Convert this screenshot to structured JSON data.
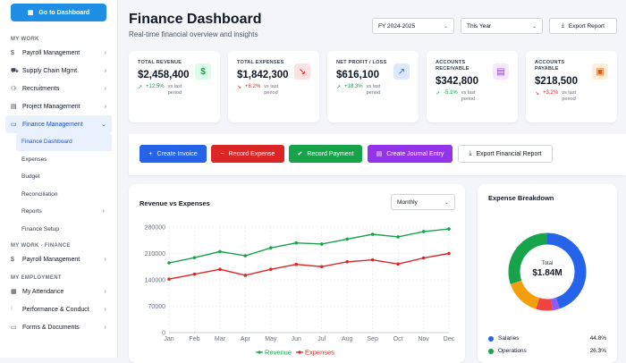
{
  "sidebar": {
    "go_btn": "Go to Dashboard",
    "sec_work": "MY WORK",
    "payroll": "Payroll Management",
    "supply": "Supply Chain Mgmt.",
    "recruit": "Recruitments",
    "project": "Project Management",
    "finance": "Finance Management",
    "sub": {
      "dash": "Finance Dashboard",
      "exp": "Expenses",
      "budget": "Budget",
      "recon": "Reconciliation",
      "reports": "Reports",
      "setup": "Finance Setup"
    },
    "sec_work_fin": "MY WORK - FINANCE",
    "payroll2": "Payroll Management",
    "sec_emp": "MY EMPLOYMENT",
    "attendance": "My Attendance",
    "perf": "Performance & Conduct",
    "forms": "Forms & Documents"
  },
  "header": {
    "title": "Finance Dashboard",
    "subtitle": "Real-time financial overview and insights",
    "fy": "FY 2024-2025",
    "period": "This Year",
    "export": "Export Report"
  },
  "cards": [
    {
      "label": "TOTAL REVENUE",
      "value": "$2,458,400",
      "change": "+12.5%",
      "vs": "vs last period",
      "color": "#16a34a",
      "icon": "$",
      "icon_bg": "#dcfce7"
    },
    {
      "label": "TOTAL EXPENSES",
      "value": "$1,842,300",
      "change": "+8.2%",
      "vs": "vs last period",
      "color": "#dc2626",
      "icon": "↘",
      "icon_bg": "#fee2e2"
    },
    {
      "label": "NET PROFIT / LOSS",
      "value": "$616,100",
      "change": "+18.3%",
      "vs": "vs last period",
      "color": "#16a34a",
      "icon": "↗",
      "icon_bg": "#dbeafe"
    },
    {
      "label": "ACCOUNTS RECEIVABLE",
      "value": "$342,800",
      "change": "-5.1%",
      "vs": "vs last period",
      "color": "#16a34a",
      "icon": "▤",
      "icon_bg": "#f3e8ff"
    },
    {
      "label": "ACCOUNTS PAYABLE",
      "value": "$218,500",
      "change": "+3.2%",
      "vs": "vs last period",
      "color": "#dc2626",
      "icon": "▣",
      "icon_bg": "#ffedd5"
    }
  ],
  "actions": {
    "invoice": "Create Invoice",
    "expense": "Record Expense",
    "payment": "Record Payment",
    "journal": "Create Journal Entry",
    "fin_report": "Export Financial Report"
  },
  "rev_panel": {
    "title": "Revenue vs Expenses",
    "select": "Monthly"
  },
  "exp_panel": {
    "title": "Expense Breakdown",
    "total_label": "Total",
    "total_value": "$1.84M",
    "legend": [
      {
        "name": "Salaries",
        "pct": "44.8%",
        "color": "#2563eb"
      },
      {
        "name": "Operations",
        "pct": "26.3%",
        "color": "#16a34a"
      }
    ]
  },
  "chart_data": {
    "type": "line",
    "categories": [
      "Jan",
      "Feb",
      "Mar",
      "Apr",
      "May",
      "Jun",
      "Jul",
      "Aug",
      "Sep",
      "Oct",
      "Nov",
      "Dec"
    ],
    "series": [
      {
        "name": "Revenue",
        "color": "#16a34a",
        "values": [
          185000,
          199000,
          215000,
          204000,
          225000,
          238000,
          235000,
          248000,
          261000,
          254000,
          268000,
          275000
        ]
      },
      {
        "name": "Expenses",
        "color": "#dc2626",
        "values": [
          142000,
          155000,
          168000,
          152000,
          168000,
          181000,
          175000,
          188000,
          193000,
          182000,
          198000,
          210000
        ]
      }
    ],
    "yticks": [
      "280000",
      "210000",
      "140000",
      "70000",
      "0"
    ],
    "ylim": [
      0,
      280000
    ],
    "grid": true,
    "legend": "bottom"
  }
}
